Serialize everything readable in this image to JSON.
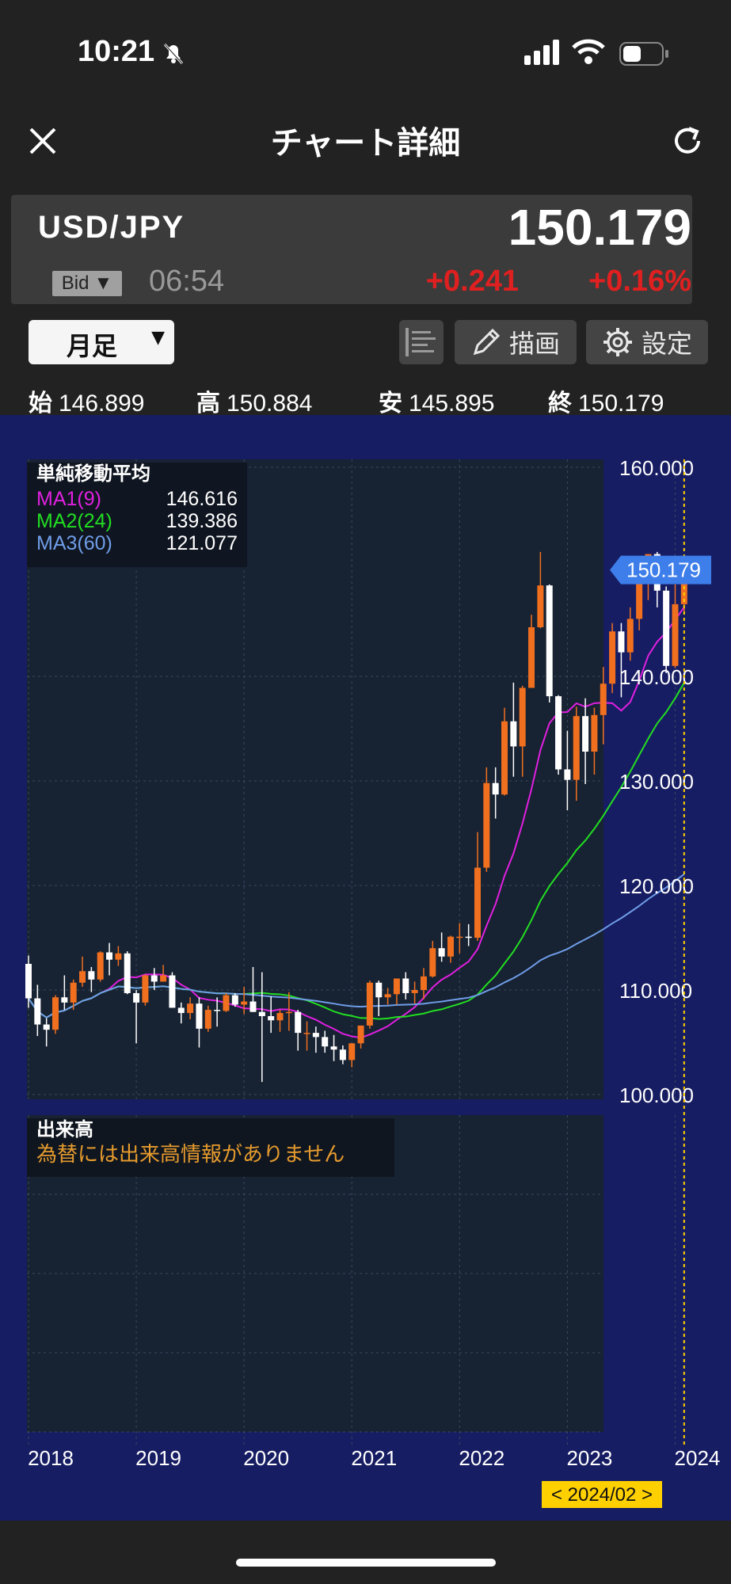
{
  "status_bar": {
    "time": "10:21"
  },
  "header": {
    "title": "チャート詳細"
  },
  "quote": {
    "pair": "USD/JPY",
    "price": "150.179",
    "bid_label": "Bid",
    "time": "06:54",
    "change": "+0.241",
    "change_pct": "+0.16%",
    "change_color": "#e02020"
  },
  "toolbar": {
    "period": "月足",
    "draw_label": "描画",
    "settings_label": "設定"
  },
  "ohlc": {
    "open_label": "始",
    "open": "146.899",
    "high_label": "高",
    "high": "150.884",
    "low_label": "安",
    "low": "145.895",
    "close_label": "終",
    "close": "150.179"
  },
  "legend": {
    "title": "単純移動平均",
    "items": [
      {
        "name": "MA1(9)",
        "value": "146.616",
        "color": "#e020e0"
      },
      {
        "name": "MA2(24)",
        "value": "139.386",
        "color": "#22dd22"
      },
      {
        "name": "MA3(60)",
        "value": "121.077",
        "color": "#6f9de8"
      }
    ]
  },
  "volume_panel": {
    "title": "出来高",
    "message": "為替には出来高情報がありません"
  },
  "cursor_label": "< 2024/02 >",
  "colors": {
    "up": "#f07020",
    "down": "#ffffff",
    "price_tag": "#3d7eea",
    "cursor": "#ffd000"
  },
  "chart_data": {
    "type": "candlestick",
    "period": "monthly",
    "y_ticks": [
      "160.000",
      "140.000",
      "130.000",
      "120.000",
      "110.000",
      "100.000"
    ],
    "y_tick_values": [
      160,
      140,
      130,
      120,
      110,
      100
    ],
    "x_ticks": [
      "2018",
      "2019",
      "2020",
      "2021",
      "2022",
      "2023",
      "2024"
    ],
    "last_price_label": "150.179",
    "last_price": 150.179,
    "ylim": [
      100,
      160
    ],
    "start": "2018-01",
    "candles": [
      [
        112.5,
        113.3,
        108.3,
        109.2
      ],
      [
        109.2,
        110.5,
        105.6,
        106.7
      ],
      [
        106.7,
        107.3,
        104.6,
        106.2
      ],
      [
        106.2,
        109.5,
        105.8,
        109.3
      ],
      [
        109.3,
        111.4,
        108.1,
        108.8
      ],
      [
        108.8,
        111.0,
        108.1,
        110.7
      ],
      [
        110.7,
        113.2,
        110.3,
        111.8
      ],
      [
        111.8,
        112.2,
        109.8,
        111.0
      ],
      [
        111.0,
        113.7,
        110.8,
        113.6
      ],
      [
        113.6,
        114.5,
        111.4,
        112.9
      ],
      [
        112.9,
        114.2,
        112.3,
        113.5
      ],
      [
        113.5,
        113.7,
        109.6,
        109.7
      ],
      [
        109.7,
        110.0,
        104.9,
        108.8
      ],
      [
        108.8,
        111.5,
        108.5,
        111.4
      ],
      [
        111.4,
        112.1,
        110.0,
        110.8
      ],
      [
        110.8,
        112.4,
        110.8,
        111.4
      ],
      [
        111.4,
        111.7,
        108.3,
        108.3
      ],
      [
        108.3,
        108.8,
        106.8,
        107.8
      ],
      [
        107.8,
        109.3,
        107.2,
        108.7
      ],
      [
        108.7,
        109.3,
        104.5,
        106.3
      ],
      [
        106.3,
        108.5,
        106.0,
        108.1
      ],
      [
        108.1,
        109.3,
        106.5,
        108.0
      ],
      [
        108.0,
        109.7,
        107.9,
        109.5
      ],
      [
        109.5,
        109.7,
        108.4,
        108.6
      ],
      [
        108.6,
        110.3,
        107.7,
        108.9
      ],
      [
        108.9,
        112.2,
        107.9,
        107.9
      ],
      [
        107.9,
        111.7,
        101.2,
        107.5
      ],
      [
        107.5,
        109.4,
        105.9,
        107.1
      ],
      [
        107.1,
        108.1,
        106.0,
        107.8
      ],
      [
        107.8,
        109.8,
        106.1,
        107.9
      ],
      [
        107.9,
        108.1,
        104.2,
        105.9
      ],
      [
        105.9,
        107.0,
        104.2,
        105.9
      ],
      [
        105.9,
        106.5,
        104.0,
        105.5
      ],
      [
        105.5,
        106.1,
        104.0,
        104.6
      ],
      [
        104.6,
        105.7,
        103.2,
        104.3
      ],
      [
        104.3,
        104.7,
        102.9,
        103.3
      ],
      [
        103.3,
        104.9,
        102.6,
        104.9
      ],
      [
        104.9,
        106.6,
        104.4,
        106.6
      ],
      [
        106.6,
        110.9,
        106.3,
        110.7
      ],
      [
        110.7,
        110.9,
        107.5,
        109.3
      ],
      [
        109.3,
        110.2,
        108.6,
        109.6
      ],
      [
        109.6,
        111.1,
        108.6,
        111.1
      ],
      [
        111.1,
        111.7,
        109.1,
        109.7
      ],
      [
        109.7,
        110.8,
        108.7,
        110.0
      ],
      [
        110.0,
        112.1,
        109.1,
        111.3
      ],
      [
        111.3,
        114.7,
        111.2,
        114.0
      ],
      [
        114.0,
        115.5,
        112.7,
        113.2
      ],
      [
        113.2,
        115.2,
        112.6,
        115.1
      ],
      [
        115.1,
        116.4,
        113.5,
        115.1
      ],
      [
        115.1,
        116.3,
        114.2,
        115.0
      ],
      [
        115.0,
        125.1,
        114.7,
        121.7
      ],
      [
        121.7,
        131.3,
        121.3,
        129.8
      ],
      [
        129.8,
        131.3,
        126.4,
        128.7
      ],
      [
        128.7,
        137.0,
        128.6,
        135.7
      ],
      [
        135.7,
        139.4,
        130.4,
        133.3
      ],
      [
        133.3,
        139.1,
        130.4,
        138.9
      ],
      [
        138.9,
        145.9,
        138.9,
        144.7
      ],
      [
        144.7,
        151.9,
        144.6,
        148.7
      ],
      [
        148.7,
        148.8,
        137.5,
        138.1
      ],
      [
        138.1,
        138.2,
        130.6,
        131.1
      ],
      [
        131.1,
        134.8,
        127.2,
        130.1
      ],
      [
        130.1,
        137.1,
        128.1,
        136.2
      ],
      [
        136.2,
        137.9,
        129.7,
        132.8
      ],
      [
        132.8,
        137.0,
        130.6,
        136.3
      ],
      [
        136.3,
        140.9,
        133.5,
        139.3
      ],
      [
        139.3,
        145.1,
        138.4,
        144.3
      ],
      [
        144.3,
        145.1,
        138.0,
        142.3
      ],
      [
        142.3,
        146.6,
        141.5,
        145.5
      ],
      [
        145.5,
        149.7,
        144.4,
        149.4
      ],
      [
        149.4,
        151.7,
        147.3,
        151.7
      ],
      [
        151.7,
        151.9,
        146.6,
        148.2
      ],
      [
        148.2,
        148.6,
        140.3,
        141.0
      ],
      [
        141.0,
        148.8,
        140.8,
        146.9
      ],
      [
        146.9,
        150.9,
        145.9,
        150.2
      ]
    ]
  }
}
